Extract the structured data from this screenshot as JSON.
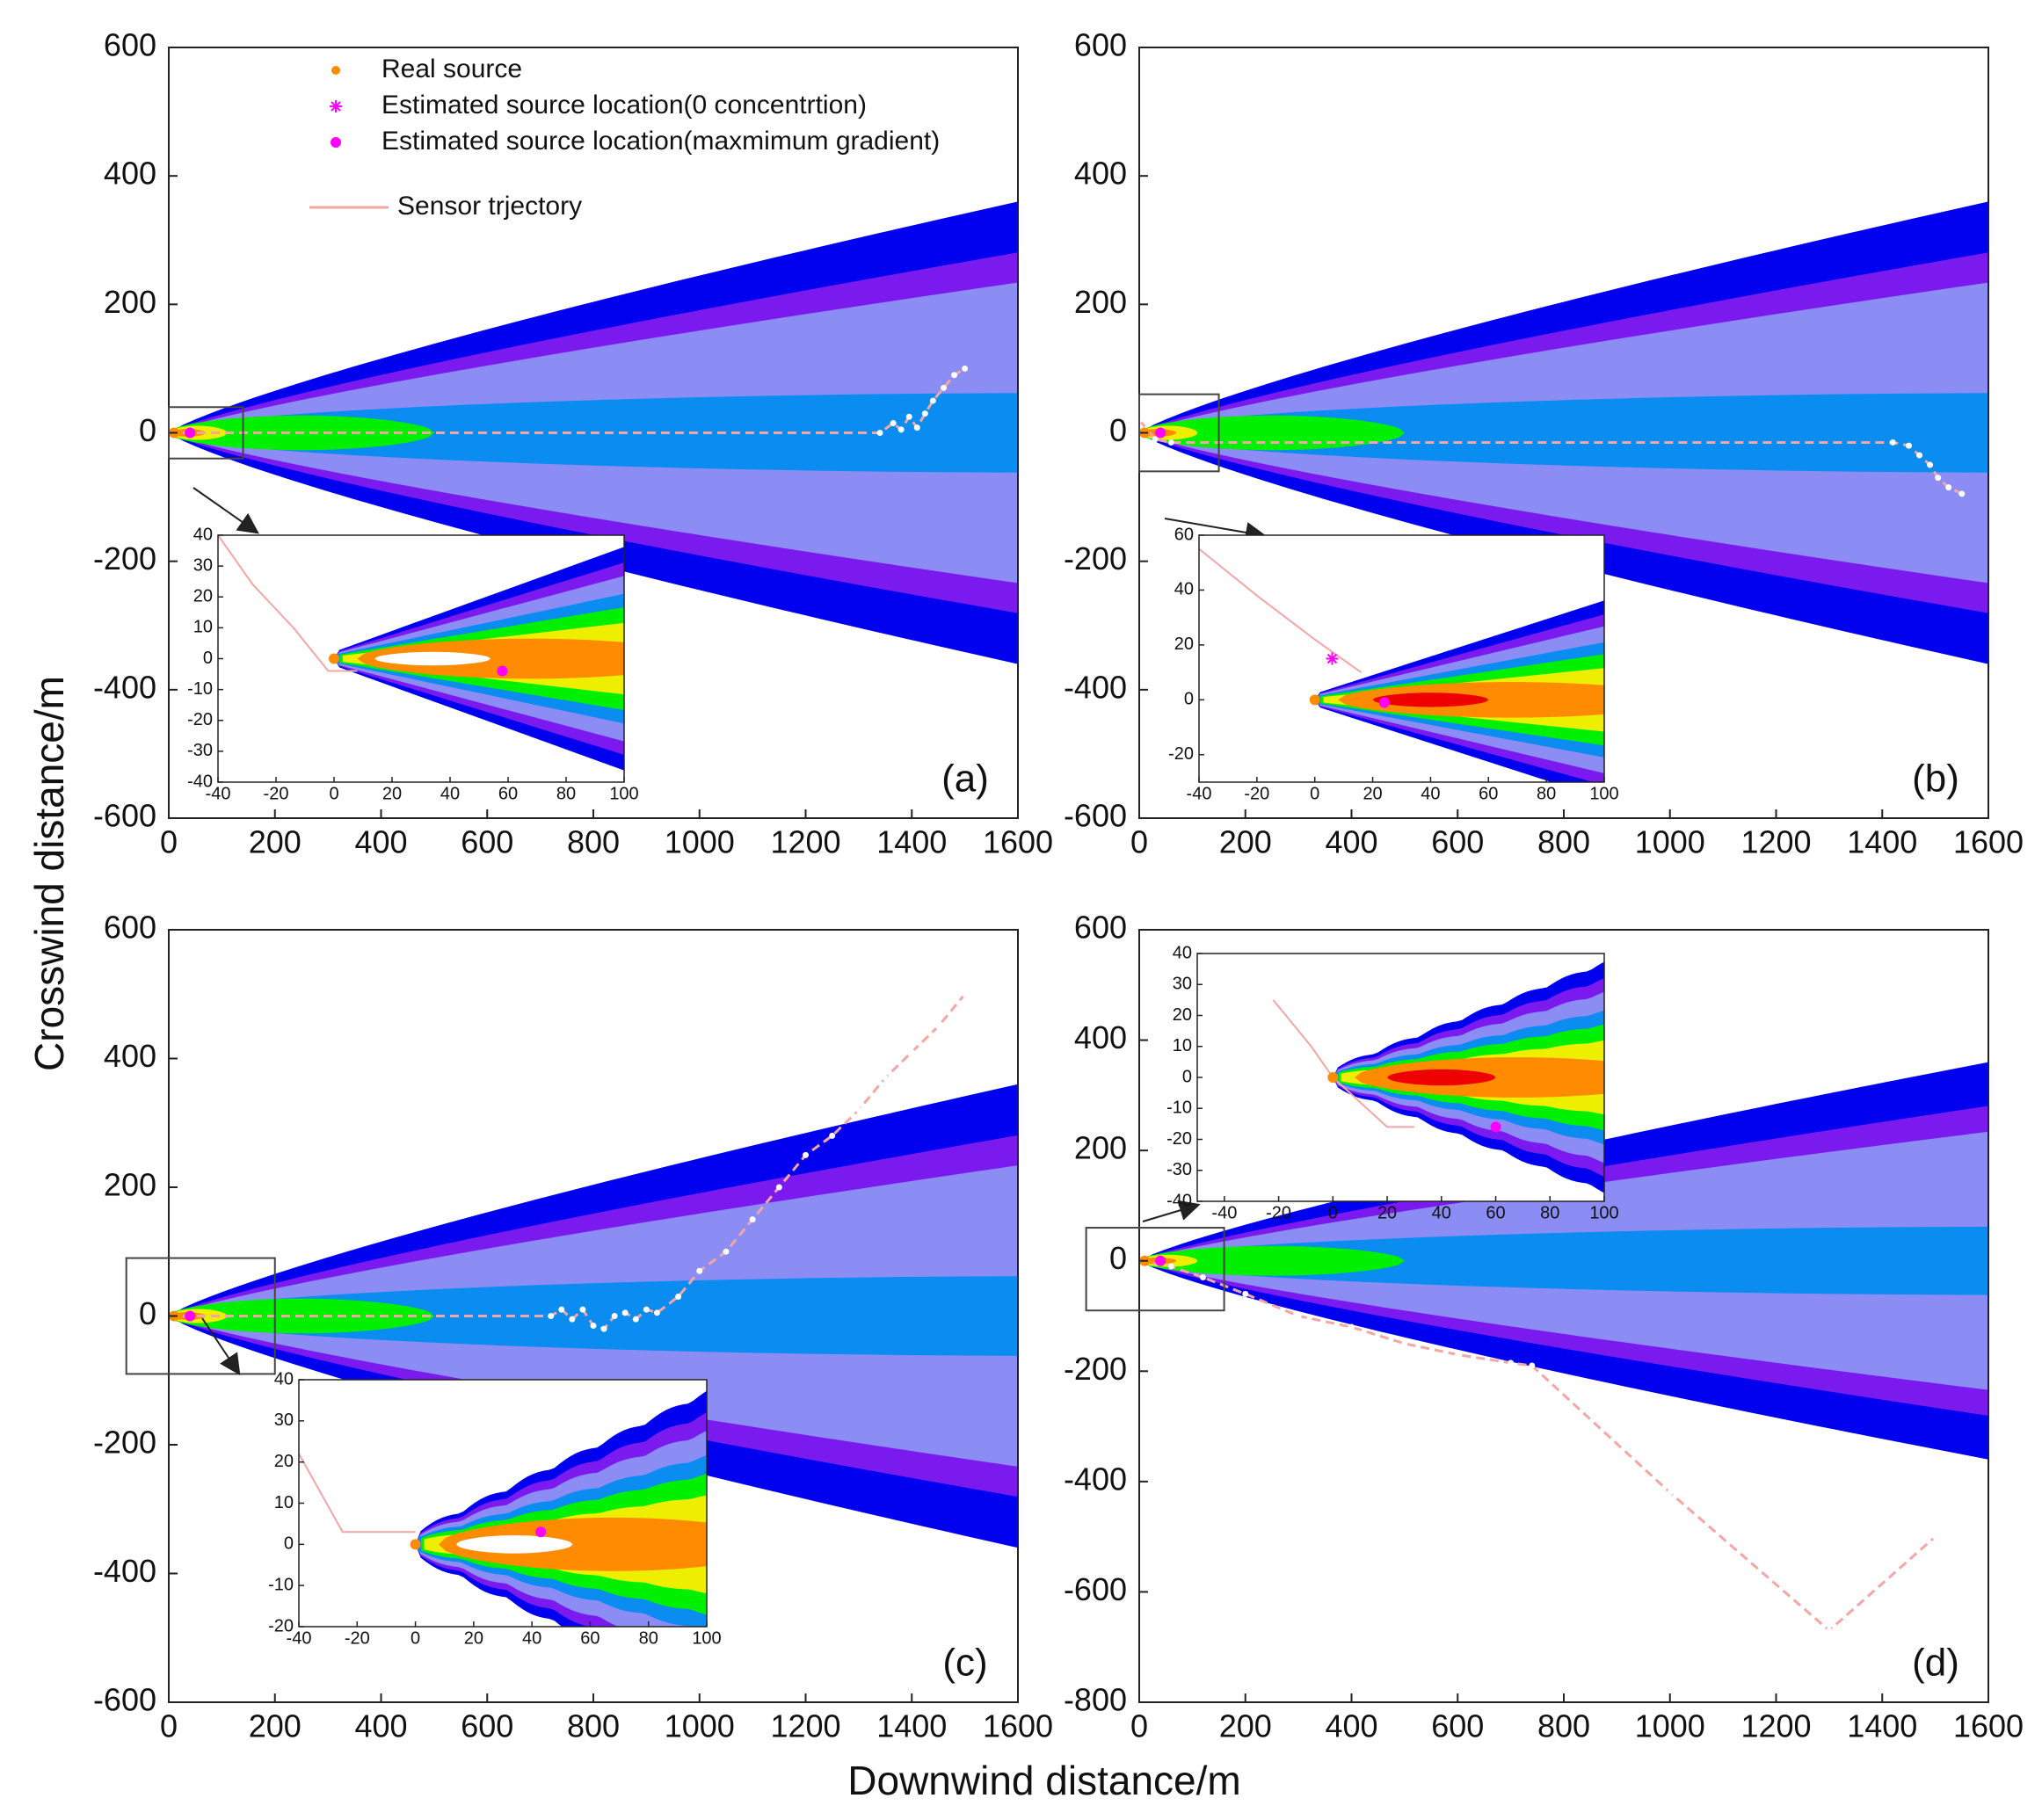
{
  "figure": {
    "xlabel": "Downwind distance/m",
    "ylabel": "Crosswind distance/m"
  },
  "legend": {
    "real_source": "Real source",
    "est_zero": "Estimated source location(0 concentrtion)",
    "est_grad": "Estimated source location(maxmimum gradient)",
    "trajectory": "Sensor trjectory"
  },
  "colors": {
    "c1": "#0000ee",
    "c2": "#7a1aee",
    "c3": "#8c8cf5",
    "c4": "#0a8cf0",
    "c5": "#00f000",
    "c6": "#eeee00",
    "c7": "#ff8c00",
    "c8": "#ee0000",
    "c9": "#ffffff",
    "real_source": "#ff8c00",
    "estimate": "#ff00ff",
    "trajectory": "#f4a6a6"
  },
  "chart_data": [
    {
      "id": "a",
      "panel_label": "(a)",
      "type": "contour",
      "xlim": [
        0,
        1600
      ],
      "ylim": [
        -600,
        600
      ],
      "xticks": [
        0,
        200,
        400,
        600,
        800,
        1000,
        1200,
        1400,
        1600
      ],
      "yticks": [
        600,
        400,
        200,
        0,
        -200,
        -400,
        -600
      ],
      "trajectory": [
        [
          0,
          0
        ],
        [
          1340,
          0
        ],
        [
          1365,
          15
        ],
        [
          1380,
          5
        ],
        [
          1395,
          25
        ],
        [
          1410,
          8
        ],
        [
          1425,
          30
        ],
        [
          1440,
          50
        ],
        [
          1460,
          70
        ],
        [
          1480,
          90
        ],
        [
          1500,
          100
        ]
      ],
      "inset": {
        "xlim": [
          -40,
          100
        ],
        "ylim": [
          -40,
          40
        ],
        "xticks": [
          -40,
          -20,
          0,
          20,
          40,
          60,
          80,
          100
        ],
        "yticks": [
          40,
          30,
          20,
          10,
          0,
          -10,
          -20,
          -30,
          -40
        ],
        "real_source": [
          0,
          0
        ],
        "estimate_grad": [
          58,
          -4
        ],
        "trajectory": [
          [
            -40,
            40
          ],
          [
            -28,
            24
          ],
          [
            -14,
            10
          ],
          [
            -2,
            -4
          ],
          [
            8,
            -4
          ]
        ],
        "has_red_core": false
      }
    },
    {
      "id": "b",
      "panel_label": "(b)",
      "type": "contour",
      "xlim": [
        0,
        1600
      ],
      "ylim": [
        -600,
        600
      ],
      "xticks": [
        0,
        200,
        400,
        600,
        800,
        1000,
        1200,
        1400,
        1600
      ],
      "yticks": [
        600,
        400,
        200,
        0,
        -200,
        -400,
        -600
      ],
      "trajectory": [
        [
          0,
          20
        ],
        [
          30,
          -10
        ],
        [
          60,
          -15
        ],
        [
          1420,
          -15
        ],
        [
          1450,
          -20
        ],
        [
          1470,
          -35
        ],
        [
          1490,
          -50
        ],
        [
          1505,
          -70
        ],
        [
          1525,
          -85
        ],
        [
          1550,
          -95
        ]
      ],
      "inset": {
        "xlim": [
          -40,
          100
        ],
        "ylim": [
          -30,
          60
        ],
        "xticks": [
          -40,
          -20,
          0,
          20,
          40,
          60,
          80,
          100
        ],
        "yticks": [
          60,
          40,
          20,
          0,
          -20
        ],
        "real_source": [
          0,
          0
        ],
        "estimate_zero": [
          6,
          15
        ],
        "estimate_grad": [
          24,
          -1
        ],
        "trajectory": [
          [
            -40,
            55
          ],
          [
            -20,
            38
          ],
          [
            0,
            22
          ],
          [
            8,
            16
          ],
          [
            16,
            10
          ]
        ],
        "has_red_core": true
      }
    },
    {
      "id": "c",
      "panel_label": "(c)",
      "type": "contour",
      "xlim": [
        0,
        1600
      ],
      "ylim": [
        -600,
        600
      ],
      "xticks": [
        0,
        200,
        400,
        600,
        800,
        1000,
        1200,
        1400,
        1600
      ],
      "yticks": [
        600,
        400,
        200,
        0,
        -200,
        -400,
        -600
      ],
      "trajectory": [
        [
          0,
          0
        ],
        [
          720,
          0
        ],
        [
          740,
          10
        ],
        [
          760,
          -5
        ],
        [
          780,
          10
        ],
        [
          800,
          -15
        ],
        [
          820,
          -20
        ],
        [
          840,
          0
        ],
        [
          860,
          5
        ],
        [
          880,
          -5
        ],
        [
          900,
          10
        ],
        [
          920,
          5
        ],
        [
          960,
          30
        ],
        [
          1000,
          70
        ],
        [
          1050,
          100
        ],
        [
          1100,
          150
        ],
        [
          1150,
          200
        ],
        [
          1200,
          250
        ],
        [
          1250,
          280
        ],
        [
          1300,
          320
        ],
        [
          1350,
          370
        ],
        [
          1400,
          410
        ],
        [
          1450,
          450
        ],
        [
          1500,
          500
        ]
      ],
      "inset": {
        "xlim": [
          -40,
          100
        ],
        "ylim": [
          -20,
          40
        ],
        "xticks": [
          -40,
          -20,
          0,
          20,
          40,
          60,
          80,
          100
        ],
        "yticks": [
          40,
          30,
          20,
          10,
          0,
          -10,
          -20
        ],
        "real_source": [
          0,
          0
        ],
        "estimate_grad": [
          43,
          3
        ],
        "trajectory": [
          [
            -40,
            22
          ],
          [
            -25,
            3
          ],
          [
            0,
            3
          ]
        ],
        "has_red_core": false
      }
    },
    {
      "id": "d",
      "panel_label": "(d)",
      "type": "contour",
      "xlim": [
        0,
        1600
      ],
      "ylim": [
        -800,
        600
      ],
      "xticks": [
        0,
        200,
        400,
        600,
        800,
        1000,
        1200,
        1400,
        1600
      ],
      "yticks": [
        600,
        400,
        200,
        0,
        -200,
        -400,
        -600,
        -800
      ],
      "trajectory": [
        [
          0,
          0
        ],
        [
          60,
          -10
        ],
        [
          120,
          -30
        ],
        [
          200,
          -60
        ],
        [
          300,
          -100
        ],
        [
          400,
          -120
        ],
        [
          500,
          -150
        ],
        [
          600,
          -170
        ],
        [
          700,
          -185
        ],
        [
          740,
          -190
        ],
        [
          1000,
          -420
        ],
        [
          1300,
          -670
        ],
        [
          1500,
          -500
        ]
      ],
      "inset": {
        "xlim": [
          -50,
          100
        ],
        "ylim": [
          -40,
          40
        ],
        "xticks": [
          -40,
          -20,
          0,
          20,
          40,
          60,
          80,
          100
        ],
        "yticks": [
          40,
          30,
          20,
          10,
          0,
          -10,
          -20,
          -30,
          -40
        ],
        "real_source": [
          0,
          0
        ],
        "estimate_grad": [
          60,
          -16
        ],
        "trajectory": [
          [
            -22,
            25
          ],
          [
            -8,
            10
          ],
          [
            0,
            0
          ],
          [
            20,
            -16
          ],
          [
            30,
            -16
          ]
        ],
        "has_red_core": true
      }
    }
  ]
}
